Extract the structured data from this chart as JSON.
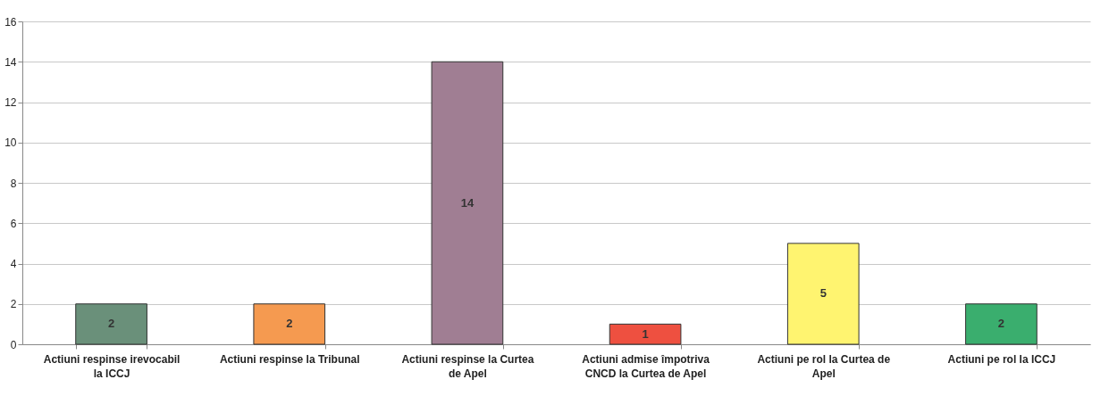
{
  "chart_data": {
    "type": "bar",
    "categories": [
      "Actiuni respinse irevocabil la ICCJ",
      "Actiuni respinse la Tribunal",
      "Actiuni respinse la Curtea de Apel",
      "Actiuni admise împotriva CNCD la Curtea de Apel",
      "Actiuni pe rol la Curtea de Apel",
      "Actiuni pe rol la ICCJ"
    ],
    "values": [
      2,
      2,
      14,
      1,
      5,
      2
    ],
    "colors": [
      "#6a907a",
      "#f59a50",
      "#a07e93",
      "#ee5040",
      "#fff470",
      "#3aae6e"
    ],
    "ylim": [
      0,
      16
    ],
    "yticks": [
      0,
      2,
      4,
      6,
      8,
      10,
      12,
      14,
      16
    ],
    "grid": "y",
    "data_labels": true
  }
}
